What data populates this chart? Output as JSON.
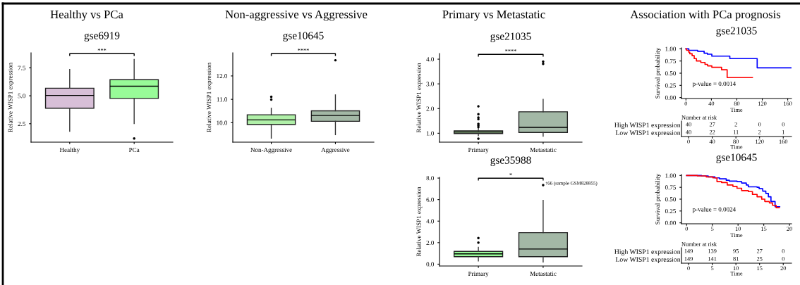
{
  "chart_data": [
    {
      "type": "box",
      "title": "Healthy vs PCa",
      "subtitle": "gse6919",
      "ylabel": "Relative WISP1 expression",
      "categories": [
        "Healthy",
        "PCa"
      ],
      "colors": [
        "#d8bfd8",
        "#98fb98"
      ],
      "boxes": [
        {
          "low": 1.82,
          "q1": 3.89,
          "median": 5.03,
          "q3": 5.68,
          "high": 7.35
        },
        {
          "low": 2.52,
          "q1": 4.76,
          "median": 5.86,
          "q3": 6.44,
          "high": 8.26,
          "outliers": [
            1.18
          ]
        }
      ],
      "ylim": [
        0.85,
        8.85
      ],
      "yticks": [
        2.5,
        {
          "value": 5,
          "label": "5.0"
        },
        7.5
      ],
      "annotations": [
        "***"
      ]
    },
    {
      "type": "box",
      "title": "Non-aggressive vs Aggressive",
      "subtitle": "gse10645",
      "ylabel": "Relative WISP1 expression",
      "categories": [
        "Non-Aggressive",
        "Aggressive"
      ],
      "colors": [
        "#b0f0a8",
        "#a3b8a6"
      ],
      "boxes": [
        {
          "low": 9.34,
          "q1": 9.92,
          "median": 10.12,
          "q3": 10.34,
          "high": 10.62,
          "outliers": [
            10.99,
            11.11
          ]
        },
        {
          "low": 9.49,
          "q1": 10.06,
          "median": 10.31,
          "q3": 10.51,
          "high": 11.19,
          "outliers": [
            12.67
          ]
        }
      ],
      "ylim": [
        9.17,
        12.99
      ],
      "yticks": [
        {
          "value": 10,
          "label": "10.0"
        },
        {
          "value": 11,
          "label": "11.0"
        },
        {
          "value": 12,
          "label": "12.0"
        }
      ],
      "annotations": [
        "****"
      ]
    },
    {
      "type": "box",
      "title": "Primary vs Metastatic",
      "subtitle": "gse21035",
      "ylabel": "Relative WISP1 expression",
      "categories": [
        "Primary",
        "Metastatic"
      ],
      "colors": [
        "#93b98a",
        "#a3b8a6"
      ],
      "boxes": [
        {
          "low": 0.9,
          "q1": 0.99,
          "median": 1.05,
          "q3": 1.1,
          "high": 1.23,
          "outliers": [
            0.78,
            1.25,
            1.32,
            1.38,
            1.57,
            1.64,
            1.77,
            2.09
          ]
        },
        {
          "low": 0.88,
          "q1": 1.03,
          "median": 1.24,
          "q3": 1.87,
          "high": 2.37,
          "outliers": [
            3.81,
            3.9
          ]
        }
      ],
      "ylim": [
        0.64,
        4.23
      ],
      "yticks": [
        {
          "value": 1,
          "label": "1.0"
        },
        {
          "value": 2,
          "label": "2.0"
        },
        {
          "value": 3,
          "label": "3.0"
        },
        {
          "value": 4,
          "label": "4.0"
        }
      ],
      "annotations": [
        "****"
      ]
    },
    {
      "type": "step",
      "title": "Association with PCa prognosis",
      "subtitle": "gse21035",
      "ylabel": "Survival probability",
      "xlabel": "Time",
      "series": [
        {
          "color": "#0000ff",
          "x": [
            0,
            4.5,
            18.3,
            28.6,
            33.8,
            40.7,
            69,
            112,
            165
          ],
          "values": [
            1.0,
            0.97,
            0.95,
            0.91,
            0.89,
            0.85,
            0.8,
            0.61,
            0.61
          ]
        },
        {
          "color": "#ff0000",
          "x": [
            0,
            1,
            4.5,
            6,
            9.7,
            13,
            16.5,
            23.4,
            30,
            34,
            40.7,
            56,
            64.8,
            104.5
          ],
          "values": [
            1.0,
            0.97,
            0.93,
            0.9,
            0.86,
            0.8,
            0.75,
            0.72,
            0.68,
            0.65,
            0.62,
            0.57,
            0.41,
            0.41
          ]
        }
      ],
      "xlim": [
        -7,
        166
      ],
      "xticks": [
        0,
        40,
        80,
        120,
        160
      ],
      "ylim": [
        -0.02,
        1.02
      ],
      "yticks": [
        {
          "value": 0,
          "label": "0.00"
        },
        {
          "value": 0.25,
          "label": "0.25"
        },
        {
          "value": 0.5,
          "label": "0.50"
        },
        {
          "value": 0.75,
          "label": "0.75"
        },
        {
          "value": 1,
          "label": "1.00"
        }
      ],
      "annotations": [
        "p-value = 0.0014"
      ]
    },
    {
      "type": "heatmap",
      "title": "Number at risk",
      "xlabel": "Time",
      "categories": [
        "0",
        "40",
        "80",
        "120",
        "160"
      ],
      "y_categories": [
        "High WISP1 expression",
        "Low WISP1 expression"
      ],
      "cells": [
        [
          40,
          27,
          2,
          0,
          0
        ],
        [
          40,
          22,
          11,
          2,
          1
        ]
      ],
      "data_labels": true
    },
    {
      "type": "box",
      "subtitle": "gse35988",
      "ylabel": "Relative WISP1 expression",
      "categories": [
        "Primary",
        "Metastatic"
      ],
      "colors": [
        "#98fb98",
        "#a3b8a6"
      ],
      "boxes": [
        {
          "low": 0.3,
          "q1": 0.7,
          "median": 0.96,
          "q3": 1.19,
          "high": 1.56,
          "outliers": [
            2.0,
            2.43
          ]
        },
        {
          "low": 0.2,
          "q1": 0.7,
          "median": 1.41,
          "q3": 2.93,
          "high": 5.93,
          "outliers": [
            7.35
          ]
        }
      ],
      "ylim": [
        -0.17,
        8.07
      ],
      "yticks": [
        {
          "value": 0,
          "label": "0.0"
        },
        {
          "value": 2,
          "label": "2.0"
        },
        {
          "value": 4,
          "label": "4.0"
        },
        {
          "value": 6,
          "label": "6.0"
        },
        {
          "value": 8,
          "label": "8.0"
        }
      ],
      "annotations": [
        "*",
        "↑66 (sample GSM828855)"
      ]
    },
    {
      "type": "step",
      "subtitle": "gse10645",
      "ylabel": "Survival probability",
      "xlabel": "Time",
      "series": [
        {
          "color": "#0000ff",
          "x": [
            0,
            2.9,
            4.2,
            5.5,
            6.4,
            7.7,
            8.3,
            9.8,
            10.7,
            11.6,
            12,
            13.7,
            14.1,
            14.8,
            15.4,
            15.9,
            16.4,
            17.2,
            18.1
          ],
          "values": [
            1.0,
            0.99,
            0.97,
            0.95,
            0.93,
            0.9,
            0.88,
            0.87,
            0.84,
            0.8,
            0.76,
            0.75,
            0.72,
            0.67,
            0.62,
            0.55,
            0.45,
            0.34,
            0.34
          ]
        },
        {
          "color": "#ff0000",
          "x": [
            0,
            2.1,
            3.8,
            5.1,
            5.9,
            6.8,
            7.9,
            9.0,
            9.8,
            10.7,
            12,
            12.8,
            13.7,
            14.6,
            15.2,
            16.1,
            16.7,
            17.4,
            18
          ],
          "values": [
            1.0,
            0.99,
            0.97,
            0.95,
            0.87,
            0.85,
            0.8,
            0.77,
            0.73,
            0.68,
            0.66,
            0.6,
            0.55,
            0.5,
            0.45,
            0.42,
            0.37,
            0.32,
            0.32
          ]
        }
      ],
      "xlim": [
        -1,
        20.4
      ],
      "xticks": [
        0,
        5,
        10,
        15,
        20
      ],
      "ylim": [
        -0.02,
        1.02
      ],
      "yticks": [
        {
          "value": 0,
          "label": "0.00"
        },
        {
          "value": 0.25,
          "label": "0.25"
        },
        {
          "value": 0.5,
          "label": "0.50"
        },
        {
          "value": 0.75,
          "label": "0.75"
        },
        {
          "value": 1,
          "label": "1.00"
        }
      ],
      "annotations": [
        "p-value = 0.0024"
      ]
    },
    {
      "type": "heatmap",
      "title": "Number at risk",
      "xlabel": "Time",
      "categories": [
        "0",
        "5",
        "10",
        "15",
        "20"
      ],
      "y_categories": [
        "High WISP1 expression",
        "Low WISP1 expression"
      ],
      "cells": [
        [
          149,
          139,
          95,
          27,
          0
        ],
        [
          149,
          141,
          81,
          25,
          0
        ]
      ],
      "data_labels": true
    }
  ]
}
